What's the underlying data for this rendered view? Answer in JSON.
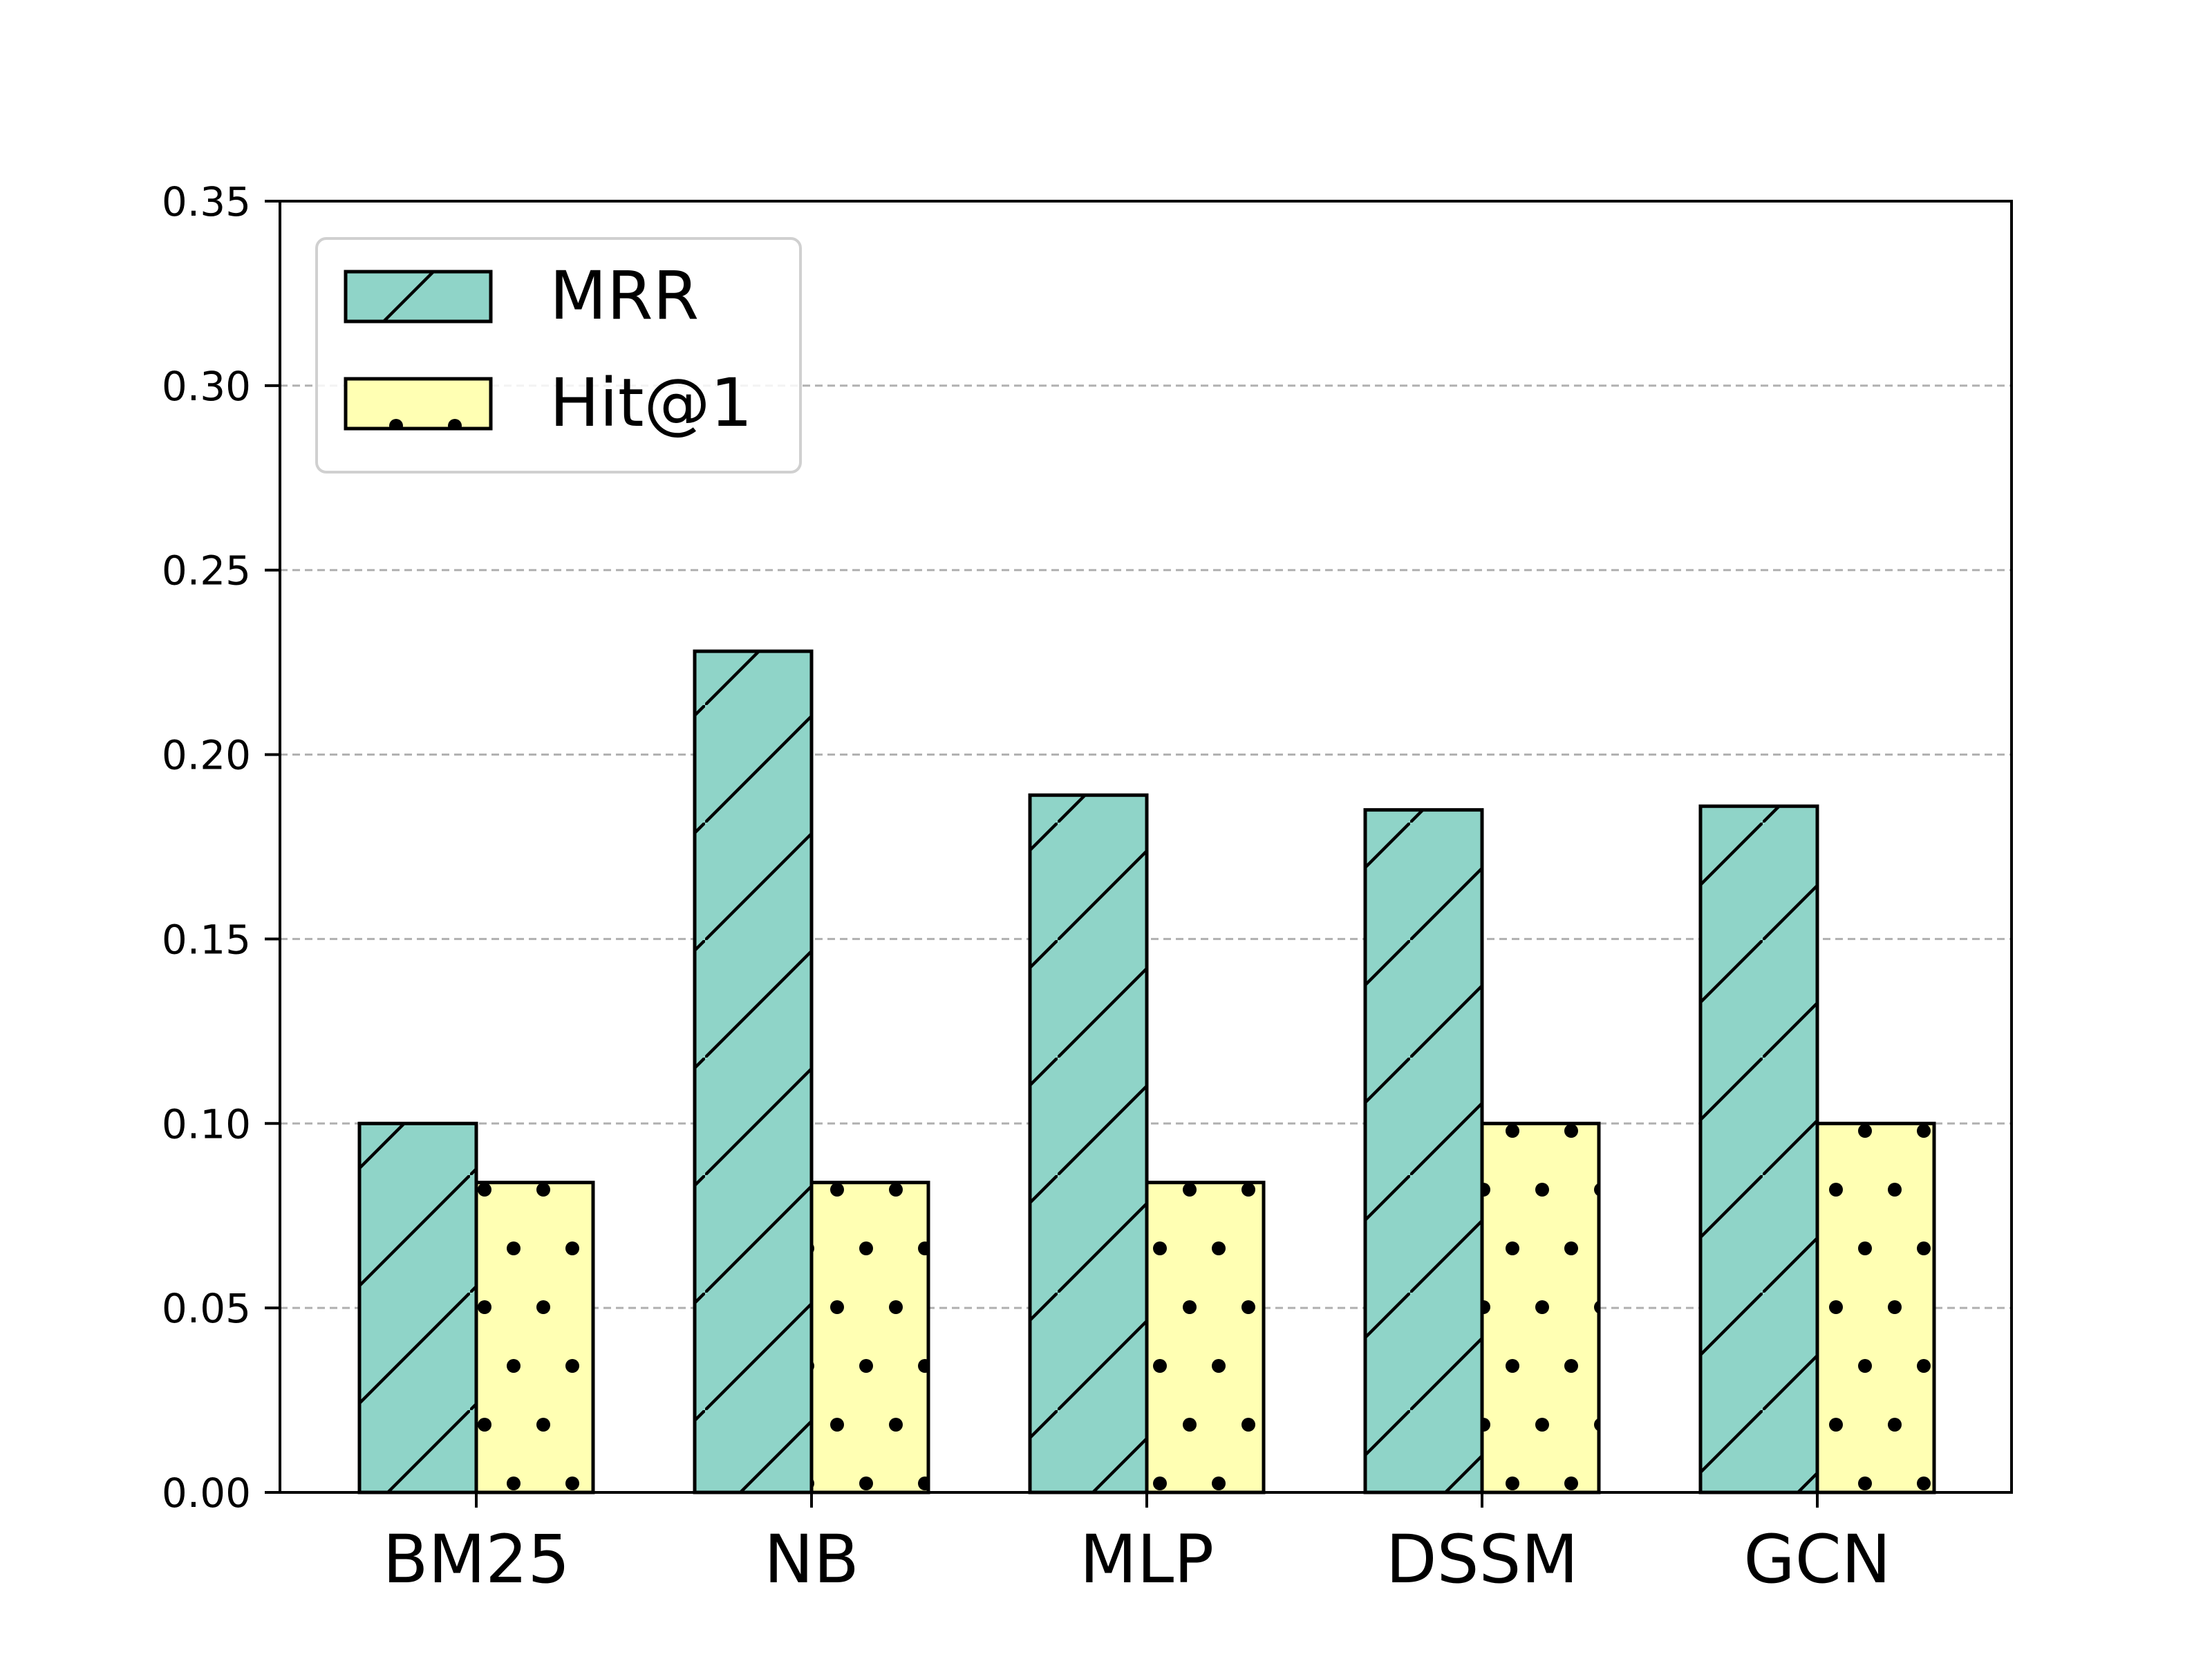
{
  "chart_data": {
    "type": "bar",
    "categories": [
      "BM25",
      "NB",
      "MLP",
      "DSSM",
      "GCN"
    ],
    "series": [
      {
        "name": "MRR",
        "values": [
          0.1,
          0.228,
          0.189,
          0.185,
          0.186
        ],
        "color": "#8fd4c8",
        "hatch": "diagonal"
      },
      {
        "name": "Hit@1",
        "values": [
          0.084,
          0.084,
          0.084,
          0.1,
          0.1
        ],
        "color": "#ffffb3",
        "hatch": "dots"
      }
    ],
    "ylim": [
      0,
      0.35
    ],
    "yticks": [
      "0.00",
      "0.05",
      "0.10",
      "0.15",
      "0.20",
      "0.25",
      "0.30",
      "0.35"
    ],
    "grid": "y-dashed",
    "legend_position": "top-left",
    "title": "",
    "xlabel": "",
    "ylabel": ""
  }
}
